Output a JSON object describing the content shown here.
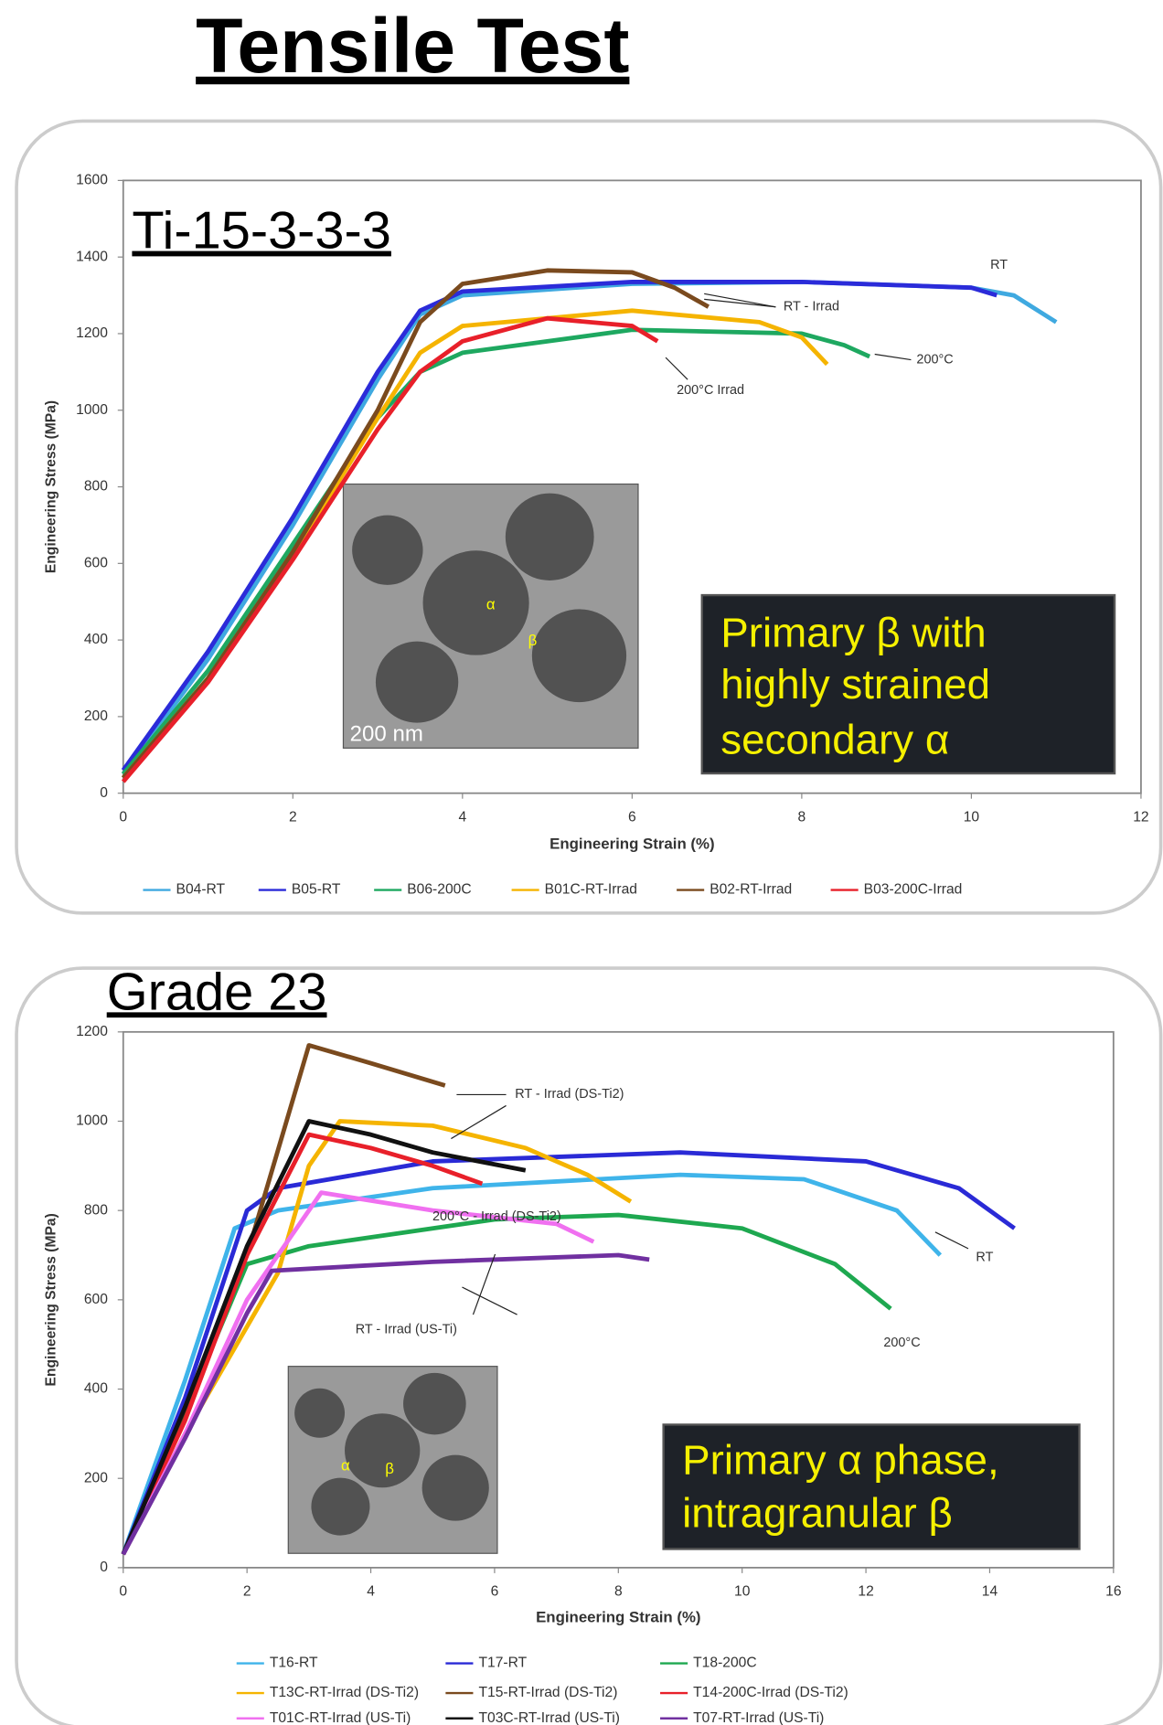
{
  "title": "Tensile Test",
  "chart_data": [
    {
      "type": "line",
      "title": "Ti-15-3-3-3",
      "x_label": "Engineering Strain (%)",
      "y_label": "Engineering Stress (MPa)",
      "xlim": [
        0,
        12
      ],
      "xticks": [
        0,
        2,
        4,
        6,
        8,
        10,
        12
      ],
      "ylim": [
        0,
        1600
      ],
      "yticks": [
        0,
        200,
        400,
        600,
        800,
        1000,
        1200,
        1400,
        1600
      ],
      "series": [
        {
          "name": "B04-RT",
          "color": "#3fa9e0",
          "x": [
            0,
            1,
            2,
            3,
            3.5,
            4,
            6,
            8,
            10,
            10.5,
            11
          ],
          "values": [
            50,
            350,
            700,
            1080,
            1250,
            1300,
            1330,
            1335,
            1320,
            1300,
            1230
          ]
        },
        {
          "name": "B05-RT",
          "color": "#2b2bd9",
          "x": [
            0,
            1,
            2,
            3,
            3.5,
            4,
            6,
            8,
            10,
            10.3
          ],
          "values": [
            60,
            370,
            720,
            1100,
            1260,
            1310,
            1335,
            1335,
            1320,
            1300
          ]
        },
        {
          "name": "B06-200C",
          "color": "#1ea860",
          "x": [
            0,
            1,
            2,
            3,
            3.5,
            4,
            6,
            8,
            8.5,
            8.8
          ],
          "values": [
            50,
            320,
            650,
            980,
            1100,
            1150,
            1210,
            1200,
            1170,
            1140
          ]
        },
        {
          "name": "B01C-RT-Irrad",
          "color": "#f5b400",
          "x": [
            0,
            1,
            2,
            3,
            3.5,
            4,
            6,
            7.5,
            8,
            8.3
          ],
          "values": [
            40,
            300,
            620,
            980,
            1150,
            1220,
            1260,
            1230,
            1190,
            1120
          ]
        },
        {
          "name": "B02-RT-Irrad",
          "color": "#7a4a1e",
          "x": [
            0,
            1,
            2,
            3,
            3.5,
            4,
            5,
            6,
            6.5,
            6.9
          ],
          "values": [
            40,
            300,
            630,
            1000,
            1230,
            1330,
            1365,
            1360,
            1320,
            1270
          ]
        },
        {
          "name": "B03-200C-Irrad",
          "color": "#e8202a",
          "x": [
            0,
            1,
            2,
            3,
            3.5,
            4,
            5,
            6,
            6.3
          ],
          "values": [
            30,
            290,
            610,
            950,
            1100,
            1180,
            1240,
            1220,
            1180
          ]
        }
      ],
      "annotations": [
        "RT",
        "RT - Irrad",
        "200°C",
        "200°C Irrad"
      ],
      "image_labels": [
        "α",
        "β",
        "200 nm"
      ],
      "inset_text": [
        "Primary β with",
        "highly strained",
        "secondary α"
      ]
    },
    {
      "type": "line",
      "title": "Grade 23",
      "x_label": "Engineering Strain (%)",
      "y_label": "Engineering Stress (MPa)",
      "xlim": [
        0,
        16
      ],
      "xticks": [
        0,
        2,
        4,
        6,
        8,
        10,
        12,
        14,
        16
      ],
      "ylim": [
        0,
        1200
      ],
      "yticks": [
        0,
        200,
        400,
        600,
        800,
        1000,
        1200
      ],
      "series": [
        {
          "name": "T16-RT",
          "color": "#3fb4ea",
          "x": [
            0,
            1,
            1.8,
            2.5,
            5,
            9,
            11,
            12.5,
            13.2
          ],
          "values": [
            30,
            420,
            760,
            800,
            850,
            880,
            870,
            800,
            700
          ]
        },
        {
          "name": "T17-RT",
          "color": "#2a2ad6",
          "x": [
            0,
            1,
            2,
            2.5,
            5,
            9,
            12,
            13.5,
            14.4
          ],
          "values": [
            30,
            380,
            800,
            850,
            910,
            930,
            910,
            850,
            760
          ]
        },
        {
          "name": "T18-200C",
          "color": "#1ea850",
          "x": [
            0,
            1,
            2,
            3,
            6,
            8,
            10,
            11.5,
            12.4
          ],
          "values": [
            30,
            350,
            680,
            720,
            780,
            790,
            760,
            680,
            580
          ]
        },
        {
          "name": "T13C-RT-Irrad (DS-Ti2)",
          "color": "#f5b400",
          "x": [
            0,
            1,
            2.5,
            3,
            3.5,
            5,
            6.5,
            7.5,
            8.2
          ],
          "values": [
            30,
            300,
            660,
            900,
            1000,
            990,
            940,
            880,
            820
          ]
        },
        {
          "name": "T15-RT-Irrad (DS-Ti2)",
          "color": "#7a4a1e",
          "x": [
            0,
            1,
            2,
            3,
            4,
            5.2
          ],
          "values": [
            30,
            350,
            700,
            1170,
            1130,
            1080
          ]
        },
        {
          "name": "T14-200C-Irrad (DS-Ti2)",
          "color": "#e8202a",
          "x": [
            0,
            1,
            2,
            3,
            4,
            5,
            5.8
          ],
          "values": [
            30,
            330,
            700,
            970,
            940,
            900,
            860
          ]
        },
        {
          "name": "T01C-RT-Irrad (US-Ti)",
          "color": "#f070f0",
          "x": [
            0,
            1,
            2,
            3.2,
            5,
            7,
            7.6
          ],
          "values": [
            30,
            300,
            600,
            840,
            800,
            770,
            730
          ]
        },
        {
          "name": "T03C-RT-Irrad (US-Ti)",
          "color": "#111111",
          "x": [
            0,
            1,
            2,
            3,
            4,
            5,
            6.5
          ],
          "values": [
            30,
            360,
            720,
            1000,
            970,
            930,
            890
          ]
        },
        {
          "name": "T07-RT-Irrad (US-Ti)",
          "color": "#7030a0",
          "x": [
            0,
            1,
            2,
            2.4,
            5,
            8,
            8.5
          ],
          "values": [
            30,
            290,
            570,
            665,
            685,
            700,
            690
          ]
        }
      ],
      "annotations": [
        "RT - Irrad (DS-Ti2)",
        "200°C - Irrad (DS-Ti2)",
        "RT - Irrad (US-Ti)",
        "RT",
        "200°C"
      ],
      "image_labels": [
        "α",
        "β"
      ],
      "inset_text": [
        "Primary α phase,",
        "intragranular β"
      ]
    }
  ]
}
